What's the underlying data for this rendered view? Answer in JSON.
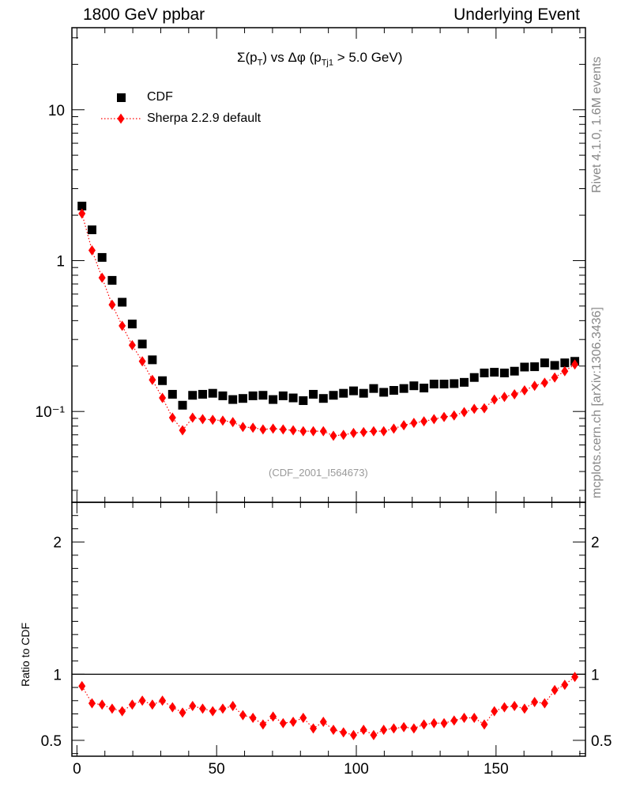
{
  "header": {
    "left": "1800 GeV ppbar",
    "right": "Underlying Event"
  },
  "side_labels": {
    "top": "Rivet 4.1.0,  1.6M events",
    "bottom": "mcplots.cern.ch [arXiv:1306.3436]"
  },
  "plot_title": {
    "sigma": "Σ(p",
    "sub_t": "T",
    "mid": ") vs Δφ (p",
    "sub_tj1": "Tj1",
    "tail": " > 5.0 GeV)"
  },
  "analysis_tag": "(CDF_2001_I564673)",
  "ratio_ylabel": "Ratio to CDF",
  "colors": {
    "data": "#000000",
    "mc": "#ff0000",
    "ref_line": "#000000"
  },
  "chart_data": {
    "type": "scatter",
    "title": "Σ(pT) vs Δφ (pTj1 > 5.0 GeV)",
    "xlabel": "",
    "xlim": [
      -1.8,
      182
    ],
    "xticks": [
      0,
      50,
      100,
      150
    ],
    "main": {
      "yscale": "log",
      "ylim": [
        0.025,
        35
      ],
      "yticks": [
        0.1,
        1,
        10
      ],
      "ytick_labels": [
        "10⁻¹",
        "1",
        "10"
      ]
    },
    "ratio": {
      "ylabel": "Ratio to CDF",
      "ylim": [
        0.38,
        2.3
      ],
      "yticks": [
        0.5,
        1,
        2
      ],
      "ytick_labels": [
        "0.5",
        "1",
        "2"
      ],
      "values": [
        0.91,
        0.78,
        0.77,
        0.74,
        0.72,
        0.77,
        0.8,
        0.77,
        0.8,
        0.75,
        0.71,
        0.76,
        0.74,
        0.72,
        0.74,
        0.76,
        0.69,
        0.67,
        0.62,
        0.68,
        0.63,
        0.64,
        0.67,
        0.59,
        0.64,
        0.58,
        0.56,
        0.54,
        0.58,
        0.54,
        0.58,
        0.59,
        0.6,
        0.59,
        0.62,
        0.63,
        0.63,
        0.65,
        0.67,
        0.67,
        0.62,
        0.72,
        0.75,
        0.76,
        0.74,
        0.79,
        0.78,
        0.88,
        0.92,
        0.98
      ]
    },
    "legend": {
      "position": "top-left"
    },
    "x": [
      1.8,
      5.4,
      9.0,
      12.6,
      16.2,
      19.8,
      23.4,
      27.0,
      30.6,
      34.2,
      37.8,
      41.4,
      45.0,
      48.6,
      52.2,
      55.8,
      59.4,
      63.0,
      66.6,
      70.2,
      73.8,
      77.4,
      81.0,
      84.6,
      88.2,
      91.8,
      95.4,
      99.0,
      102.6,
      106.2,
      109.8,
      113.4,
      117.0,
      120.6,
      124.2,
      127.8,
      131.4,
      135.0,
      138.6,
      142.2,
      145.8,
      149.4,
      153.0,
      156.6,
      160.2,
      163.8,
      167.4,
      171.0,
      174.6,
      178.2
    ],
    "series": [
      {
        "name": "CDF",
        "marker": "square",
        "values": [
          2.3,
          1.6,
          1.05,
          0.74,
          0.53,
          0.38,
          0.28,
          0.22,
          0.16,
          0.13,
          0.11,
          0.128,
          0.13,
          0.132,
          0.127,
          0.12,
          0.122,
          0.127,
          0.128,
          0.12,
          0.127,
          0.123,
          0.118,
          0.13,
          0.122,
          0.128,
          0.132,
          0.137,
          0.132,
          0.142,
          0.134,
          0.138,
          0.142,
          0.148,
          0.143,
          0.152,
          0.152,
          0.153,
          0.156,
          0.168,
          0.18,
          0.182,
          0.18,
          0.185,
          0.197,
          0.198,
          0.21,
          0.202,
          0.21,
          0.215
        ]
      },
      {
        "name": "Sherpa 2.2.9 default",
        "marker": "diamond",
        "line": "dotted",
        "values": [
          2.05,
          1.17,
          0.77,
          0.51,
          0.37,
          0.275,
          0.215,
          0.162,
          0.123,
          0.091,
          0.075,
          0.091,
          0.089,
          0.088,
          0.087,
          0.085,
          0.079,
          0.078,
          0.076,
          0.077,
          0.076,
          0.075,
          0.074,
          0.074,
          0.074,
          0.069,
          0.07,
          0.072,
          0.073,
          0.074,
          0.074,
          0.077,
          0.081,
          0.084,
          0.086,
          0.089,
          0.092,
          0.094,
          0.099,
          0.104,
          0.105,
          0.12,
          0.125,
          0.13,
          0.138,
          0.148,
          0.155,
          0.168,
          0.185,
          0.205
        ]
      }
    ]
  }
}
